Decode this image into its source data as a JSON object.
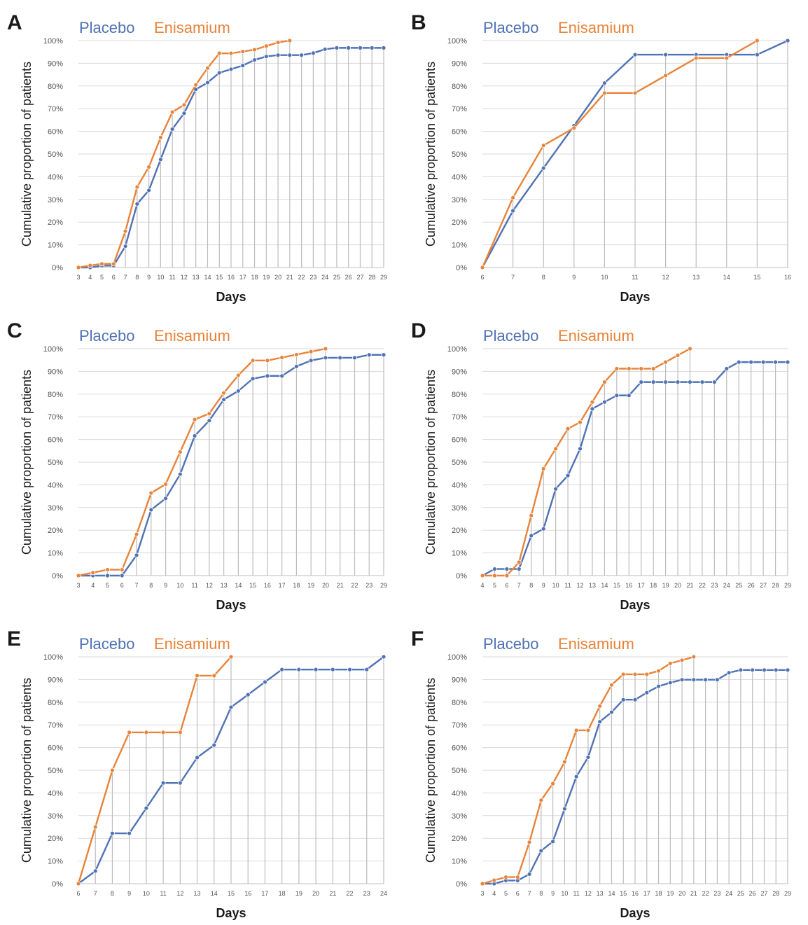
{
  "colors": {
    "placebo": "#4f72b4",
    "enisamium": "#e8833a",
    "grid": "#d9d9d9",
    "drop": "#bdbdbd",
    "axis": "#bfbfbf"
  },
  "common": {
    "ylabel": "Cumulative proportion of patients",
    "xlabel": "Days",
    "y_ticks": [
      "0%",
      "10%",
      "20%",
      "30%",
      "40%",
      "50%",
      "60%",
      "70%",
      "80%",
      "90%",
      "100%"
    ]
  },
  "chart_data": [
    {
      "panel": "A",
      "type": "line",
      "xlabel": "Days",
      "ylabel": "Cumulative proportion of patients",
      "ylim": [
        0,
        100
      ],
      "x": [
        3,
        4,
        5,
        6,
        7,
        8,
        9,
        10,
        11,
        12,
        13,
        14,
        15,
        16,
        17,
        18,
        19,
        20,
        21,
        22,
        23,
        24,
        25,
        26,
        27,
        28,
        29
      ],
      "series": [
        {
          "name": "Placebo",
          "x": [
            3,
            4,
            5,
            6,
            7,
            8,
            9,
            10,
            11,
            12,
            13,
            14,
            15,
            16,
            17,
            18,
            19,
            20,
            21,
            22,
            23,
            24,
            25,
            26,
            27,
            28,
            29
          ],
          "values": [
            0,
            0,
            0.8,
            0.8,
            9.4,
            28,
            34,
            47.6,
            61,
            68,
            78.5,
            81.5,
            85.8,
            87.4,
            89,
            91.5,
            93,
            93.6,
            93.6,
            93.6,
            94.5,
            96.2,
            96.8,
            96.8,
            96.8,
            96.8,
            96.8
          ]
        },
        {
          "name": "Enisamium",
          "x": [
            3,
            4,
            5,
            6,
            7,
            8,
            9,
            10,
            11,
            12,
            13,
            14,
            15,
            16,
            17,
            18,
            19,
            20,
            21
          ],
          "values": [
            0,
            0.9,
            1.6,
            1.6,
            16,
            35.5,
            44.3,
            57.3,
            68.5,
            71.7,
            80.5,
            87.9,
            94.4,
            94.4,
            95.2,
            96,
            97.6,
            99.2,
            100
          ]
        }
      ],
      "grid": true,
      "legend": "top-left"
    },
    {
      "panel": "B",
      "type": "line",
      "xlabel": "Days",
      "ylabel": "Cumulative proportion of patients",
      "ylim": [
        0,
        100
      ],
      "x": [
        6,
        7,
        8,
        9,
        10,
        11,
        12,
        13,
        14,
        15,
        16
      ],
      "series": [
        {
          "name": "Placebo",
          "x": [
            6,
            7,
            8,
            9,
            10,
            11,
            12,
            13,
            14,
            15,
            16
          ],
          "values": [
            0,
            25,
            43.8,
            62.5,
            81.3,
            93.8,
            93.8,
            93.8,
            93.8,
            93.8,
            100
          ]
        },
        {
          "name": "Enisamium",
          "x": [
            6,
            7,
            8,
            9,
            10,
            11,
            12,
            13,
            14,
            15
          ],
          "values": [
            0,
            30.8,
            53.8,
            61.5,
            76.9,
            76.9,
            84.6,
            92.3,
            92.3,
            100
          ]
        }
      ],
      "grid": true,
      "legend": "top-left"
    },
    {
      "panel": "C",
      "type": "line",
      "xlabel": "Days",
      "ylabel": "Cumulative proportion of patients",
      "ylim": [
        0,
        100
      ],
      "x": [
        3,
        4,
        5,
        6,
        7,
        8,
        9,
        10,
        11,
        12,
        13,
        14,
        15,
        16,
        17,
        18,
        19,
        20,
        21,
        22,
        23,
        29
      ],
      "series": [
        {
          "name": "Placebo",
          "x": [
            3,
            4,
            5,
            6,
            7,
            8,
            9,
            10,
            11,
            12,
            13,
            14,
            15,
            16,
            17,
            18,
            19,
            20,
            21,
            22,
            23,
            29
          ],
          "values": [
            0,
            0,
            0,
            0,
            9,
            29,
            34,
            44.7,
            61.6,
            68.3,
            77.6,
            81.4,
            86.8,
            88,
            88,
            92.2,
            94.8,
            96,
            96,
            96,
            97.3,
            97.3
          ]
        },
        {
          "name": "Enisamium",
          "x": [
            3,
            4,
            5,
            6,
            7,
            8,
            9,
            10,
            11,
            12,
            13,
            14,
            15,
            16,
            17,
            18,
            19,
            20
          ],
          "values": [
            0,
            1.3,
            2.6,
            2.6,
            18.2,
            36.4,
            40.3,
            54.5,
            68.8,
            71.4,
            80.5,
            88.3,
            94.8,
            94.8,
            96.1,
            97.4,
            98.7,
            100
          ]
        }
      ],
      "grid": true,
      "legend": "top-left"
    },
    {
      "panel": "D",
      "type": "line",
      "xlabel": "Days",
      "ylabel": "Cumulative proportion of patients",
      "ylim": [
        0,
        100
      ],
      "x": [
        4,
        5,
        6,
        7,
        8,
        9,
        10,
        11,
        12,
        13,
        14,
        15,
        16,
        17,
        18,
        19,
        20,
        21,
        22,
        23,
        24,
        25,
        26,
        27,
        28,
        29
      ],
      "series": [
        {
          "name": "Placebo",
          "x": [
            4,
            5,
            6,
            7,
            8,
            9,
            10,
            11,
            12,
            13,
            14,
            15,
            16,
            17,
            18,
            19,
            20,
            21,
            22,
            23,
            24,
            25,
            26,
            27,
            28,
            29
          ],
          "values": [
            0,
            2.9,
            2.9,
            2.9,
            17.6,
            20.6,
            38.2,
            44.1,
            55.9,
            73.5,
            76.5,
            79.4,
            79.4,
            85.3,
            85.3,
            85.3,
            85.3,
            85.3,
            85.3,
            85.3,
            91.2,
            94.1,
            94.1,
            94.1,
            94.1,
            94.1
          ]
        },
        {
          "name": "Enisamium",
          "x": [
            4,
            5,
            6,
            7,
            8,
            9,
            10,
            11,
            12,
            13,
            14,
            15,
            16,
            17,
            18,
            19,
            20,
            21
          ],
          "values": [
            0,
            0,
            0,
            5.9,
            26.5,
            47.1,
            55.9,
            64.7,
            67.6,
            76.5,
            85.3,
            91.2,
            91.2,
            91.2,
            91.2,
            94.1,
            97.1,
            100
          ]
        }
      ],
      "grid": true,
      "legend": "top-left"
    },
    {
      "panel": "E",
      "type": "line",
      "xlabel": "Days",
      "ylabel": "Cumulative proportion of patients",
      "ylim": [
        0,
        100
      ],
      "x": [
        6,
        7,
        8,
        9,
        10,
        11,
        12,
        13,
        14,
        15,
        16,
        17,
        18,
        19,
        20,
        21,
        22,
        23,
        24
      ],
      "series": [
        {
          "name": "Placebo",
          "x": [
            6,
            7,
            8,
            9,
            10,
            11,
            12,
            13,
            14,
            15,
            16,
            17,
            18,
            19,
            20,
            21,
            22,
            23,
            24
          ],
          "values": [
            0,
            5.6,
            22.2,
            22.2,
            33.3,
            44.4,
            44.4,
            55.6,
            61.1,
            77.8,
            83.3,
            88.9,
            94.4,
            94.4,
            94.4,
            94.4,
            94.4,
            94.4,
            100
          ]
        },
        {
          "name": "Enisamium",
          "x": [
            6,
            7,
            8,
            9,
            10,
            11,
            12,
            13,
            14,
            15
          ],
          "values": [
            0,
            25,
            50,
            66.7,
            66.7,
            66.7,
            66.7,
            91.7,
            91.7,
            100
          ]
        }
      ],
      "grid": true,
      "legend": "top-left"
    },
    {
      "panel": "F",
      "type": "line",
      "xlabel": "Days",
      "ylabel": "Cumulative proportion of patients",
      "ylim": [
        0,
        100
      ],
      "x": [
        3,
        4,
        5,
        6,
        7,
        8,
        9,
        10,
        11,
        12,
        13,
        14,
        15,
        16,
        17,
        18,
        19,
        20,
        21,
        22,
        23,
        24,
        25,
        26,
        27,
        28,
        29
      ],
      "series": [
        {
          "name": "Placebo",
          "x": [
            3,
            4,
            5,
            6,
            7,
            8,
            9,
            10,
            11,
            12,
            13,
            14,
            15,
            16,
            17,
            18,
            19,
            20,
            21,
            22,
            23,
            24,
            25,
            26,
            27,
            28,
            29
          ],
          "values": [
            0,
            0,
            1.4,
            1.4,
            4.2,
            14.5,
            18.6,
            33,
            47.2,
            55.7,
            71.4,
            75.6,
            81.1,
            81.1,
            84.2,
            87,
            88.6,
            89.9,
            89.9,
            89.9,
            89.9,
            93,
            94.2,
            94.2,
            94.2,
            94.2,
            94.2
          ]
        },
        {
          "name": "Enisamium",
          "x": [
            3,
            4,
            5,
            6,
            7,
            8,
            9,
            10,
            11,
            12,
            13,
            14,
            15,
            16,
            17,
            18,
            19,
            20,
            21
          ],
          "values": [
            0,
            1.5,
            2.9,
            2.9,
            18.3,
            36.8,
            44.1,
            53.7,
            67.6,
            67.6,
            78.3,
            87.6,
            92.3,
            92.3,
            92.3,
            93.8,
            97.1,
            98.5,
            100
          ]
        }
      ],
      "grid": true,
      "legend": "top-left"
    }
  ]
}
